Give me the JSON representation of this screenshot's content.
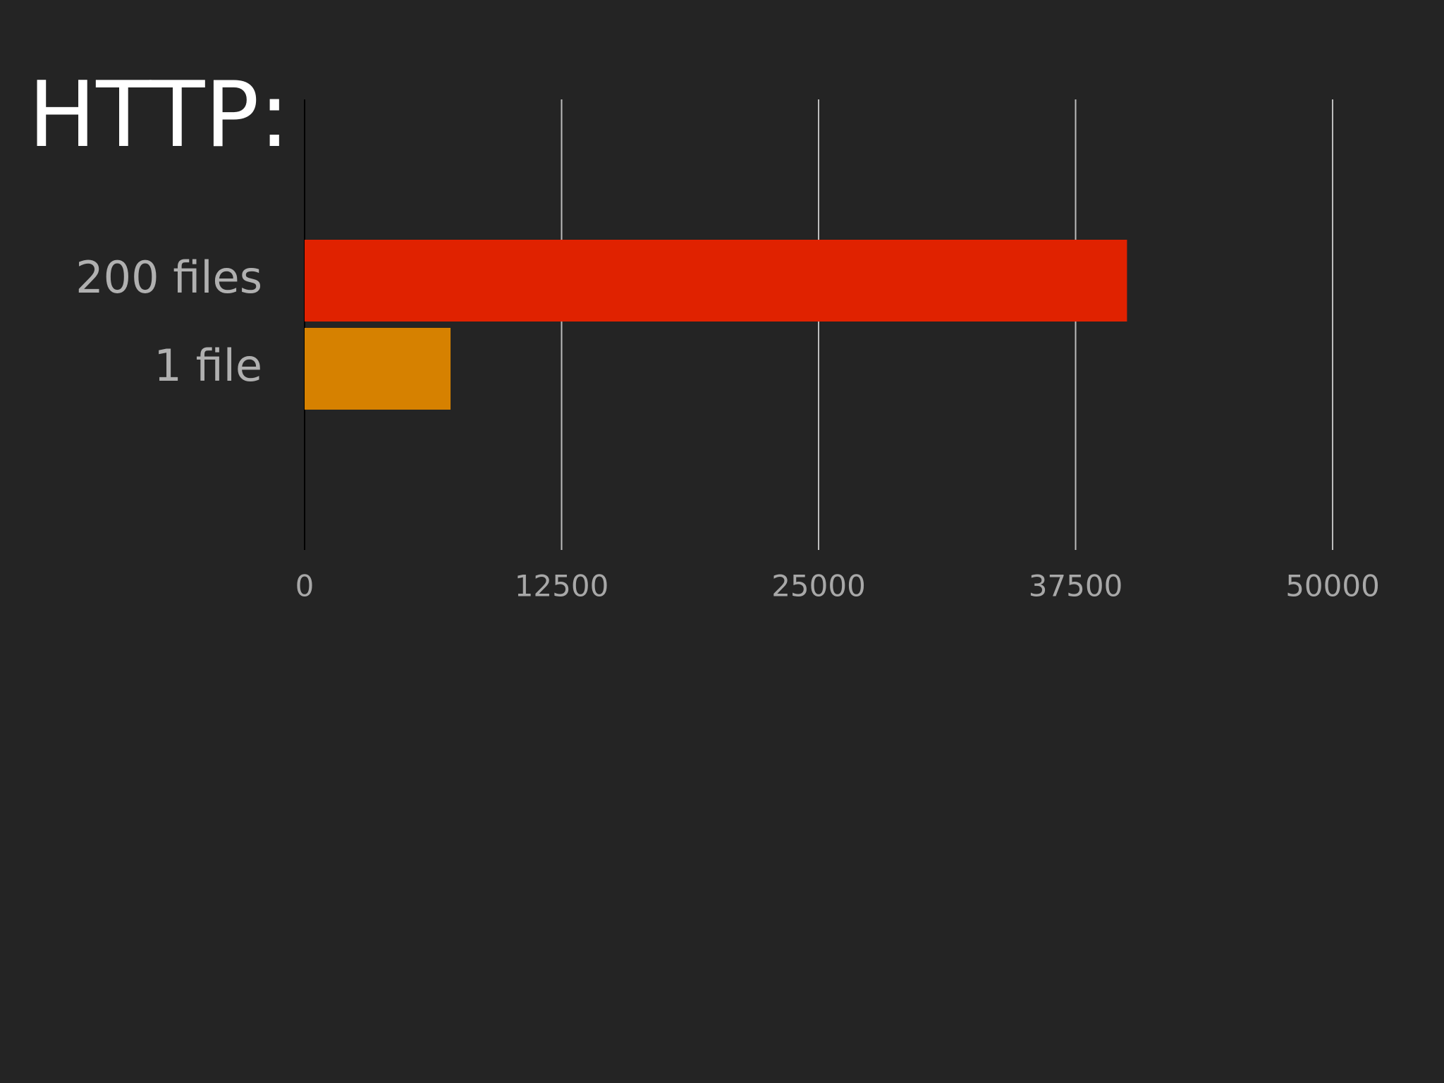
{
  "chart_data": {
    "type": "bar",
    "orientation": "horizontal",
    "title": "HTTP:",
    "categories": [
      "200 files",
      "1 file"
    ],
    "values": [
      40000,
      7100
    ],
    "colors": [
      "#e02200",
      "#d68100"
    ],
    "xlim": [
      0,
      50000
    ],
    "xticks": [
      0,
      12500,
      25000,
      37500,
      50000
    ],
    "grid": true
  }
}
